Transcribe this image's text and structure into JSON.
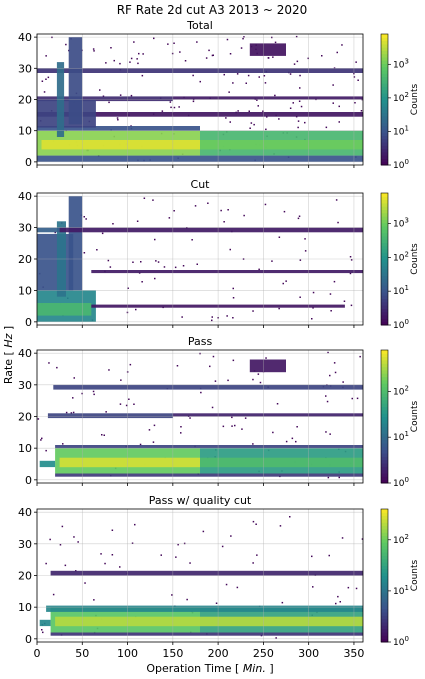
{
  "figure": {
    "title": "RF Rate 2d cut A3 2013 ~ 2020",
    "ylabel_prefix": "Rate [ ",
    "ylabel_unit": "Hz",
    "ylabel_suffix": " ]",
    "xlabel_prefix": "Operation Time [ ",
    "xlabel_unit": "Min.",
    "xlabel_suffix": " ]",
    "colormap": [
      "#440154",
      "#3b528b",
      "#21918c",
      "#5ec962",
      "#fde725"
    ]
  },
  "chart_data": [
    {
      "type": "heatmap",
      "title": "Total",
      "xlim": [
        0,
        360
      ],
      "ylim": [
        -1,
        41
      ],
      "xticks": [
        0,
        50,
        100,
        150,
        200,
        250,
        300,
        350
      ],
      "yticks": [
        0,
        10,
        20,
        30,
        40
      ],
      "colorbar": {
        "label": "Counts",
        "scale": "log",
        "range": [
          1,
          8000
        ],
        "ticks": [
          {
            "base": "10",
            "exp": "0",
            "v": 1
          },
          {
            "base": "10",
            "exp": "1",
            "v": 10
          },
          {
            "base": "10",
            "exp": "2",
            "v": 100
          },
          {
            "base": "10",
            "exp": "3",
            "v": 1000
          }
        ]
      },
      "bands": [
        {
          "y": [
            2,
            10
          ],
          "x": [
            0,
            180
          ],
          "level": 3.2
        },
        {
          "y": [
            2,
            10
          ],
          "x": [
            180,
            360
          ],
          "level": 2.6
        },
        {
          "y": [
            4,
            7
          ],
          "x": [
            5,
            180
          ],
          "level": 3.7
        },
        {
          "y": [
            4,
            7
          ],
          "x": [
            180,
            360
          ],
          "level": 3.0
        },
        {
          "y": [
            0,
            2
          ],
          "x": [
            0,
            360
          ],
          "level": 1.0
        },
        {
          "y": [
            10,
            11.5
          ],
          "x": [
            0,
            180
          ],
          "level": 1.0
        },
        {
          "y": [
            28.5,
            30
          ],
          "x": [
            0,
            360
          ],
          "level": 0.6
        },
        {
          "y": [
            19.5,
            21
          ],
          "x": [
            0,
            150
          ],
          "level": 0.5
        },
        {
          "y": [
            20,
            21
          ],
          "x": [
            150,
            360
          ],
          "level": 0.3
        },
        {
          "y": [
            14.5,
            16
          ],
          "x": [
            0,
            360
          ],
          "level": 0.25
        },
        {
          "y": [
            11,
            20
          ],
          "x": [
            0,
            65
          ],
          "level": 0.8
        },
        {
          "y": [
            12,
            40
          ],
          "x": [
            35,
            50
          ],
          "level": 0.9
        },
        {
          "y": [
            8,
            32
          ],
          "x": [
            22,
            30
          ],
          "level": 1.4
        },
        {
          "y": [
            34,
            38
          ],
          "x": [
            235,
            275
          ],
          "level": 0.2
        }
      ],
      "noise_density": 0.1
    },
    {
      "type": "heatmap",
      "title": "Cut",
      "xlim": [
        0,
        360
      ],
      "ylim": [
        -1,
        41
      ],
      "xticks": [
        0,
        50,
        100,
        150,
        200,
        250,
        300,
        350
      ],
      "yticks": [
        0,
        10,
        20,
        30,
        40
      ],
      "colorbar": {
        "label": "Counts",
        "scale": "log",
        "range": [
          1,
          8000
        ],
        "ticks": [
          {
            "base": "10",
            "exp": "0",
            "v": 1
          },
          {
            "base": "10",
            "exp": "1",
            "v": 10
          },
          {
            "base": "10",
            "exp": "2",
            "v": 100
          },
          {
            "base": "10",
            "exp": "3",
            "v": 1000
          }
        ]
      },
      "bands": [
        {
          "y": [
            0,
            10
          ],
          "x": [
            0,
            65
          ],
          "level": 1.8
        },
        {
          "y": [
            2,
            6
          ],
          "x": [
            0,
            60
          ],
          "level": 2.6
        },
        {
          "y": [
            10,
            28
          ],
          "x": [
            0,
            40
          ],
          "level": 1.0
        },
        {
          "y": [
            8,
            32
          ],
          "x": [
            22,
            32
          ],
          "level": 1.5
        },
        {
          "y": [
            10,
            40
          ],
          "x": [
            35,
            50
          ],
          "level": 1.0
        },
        {
          "y": [
            28.5,
            30
          ],
          "x": [
            0,
            25
          ],
          "level": 1.2
        },
        {
          "y": [
            28.5,
            30
          ],
          "x": [
            25,
            360
          ],
          "level": 0.3
        },
        {
          "y": [
            15.5,
            16.5
          ],
          "x": [
            60,
            360
          ],
          "level": 0.3
        },
        {
          "y": [
            4.5,
            5.5
          ],
          "x": [
            60,
            340
          ],
          "level": 0.25
        }
      ],
      "noise_density": 0.05
    },
    {
      "type": "heatmap",
      "title": "Pass",
      "xlim": [
        0,
        360
      ],
      "ylim": [
        -1,
        41
      ],
      "xticks": [
        0,
        50,
        100,
        150,
        200,
        250,
        300,
        350
      ],
      "yticks": [
        0,
        10,
        20,
        30,
        40
      ],
      "colorbar": {
        "label": "Counts",
        "scale": "log",
        "range": [
          1,
          800
        ],
        "ticks": [
          {
            "base": "10",
            "exp": "0",
            "v": 1
          },
          {
            "base": "10",
            "exp": "1",
            "v": 10
          },
          {
            "base": "10",
            "exp": "2",
            "v": 100
          }
        ]
      },
      "bands": [
        {
          "y": [
            2,
            10
          ],
          "x": [
            20,
            180
          ],
          "level": 2.2
        },
        {
          "y": [
            2,
            10
          ],
          "x": [
            180,
            360
          ],
          "level": 1.6
        },
        {
          "y": [
            4,
            7
          ],
          "x": [
            25,
            180
          ],
          "level": 2.7
        },
        {
          "y": [
            4,
            7
          ],
          "x": [
            180,
            360
          ],
          "level": 2.0
        },
        {
          "y": [
            4,
            6
          ],
          "x": [
            3,
            20
          ],
          "level": 1.4
        },
        {
          "y": [
            28.5,
            30
          ],
          "x": [
            18,
            360
          ],
          "level": 0.6
        },
        {
          "y": [
            19.5,
            21
          ],
          "x": [
            12,
            150
          ],
          "level": 0.6
        },
        {
          "y": [
            20,
            21
          ],
          "x": [
            150,
            360
          ],
          "level": 0.3
        },
        {
          "y": [
            10,
            11
          ],
          "x": [
            20,
            360
          ],
          "level": 0.6
        },
        {
          "y": [
            1,
            2
          ],
          "x": [
            20,
            360
          ],
          "level": 0.5
        },
        {
          "y": [
            34,
            38
          ],
          "x": [
            235,
            275
          ],
          "level": 0.2
        }
      ],
      "noise_density": 0.06
    },
    {
      "type": "heatmap",
      "title": "Pass w/ quality cut",
      "xlim": [
        0,
        360
      ],
      "ylim": [
        -1,
        41
      ],
      "xticks": [
        0,
        50,
        100,
        150,
        200,
        250,
        300,
        350
      ],
      "yticks": [
        0,
        10,
        20,
        30,
        40
      ],
      "colorbar": {
        "label": "Counts",
        "scale": "log",
        "range": [
          1,
          400
        ],
        "ticks": [
          {
            "base": "10",
            "exp": "0",
            "v": 1
          },
          {
            "base": "10",
            "exp": "1",
            "v": 10
          },
          {
            "base": "10",
            "exp": "2",
            "v": 100
          }
        ]
      },
      "bands": [
        {
          "y": [
            2,
            10
          ],
          "x": [
            15,
            180
          ],
          "level": 1.9
        },
        {
          "y": [
            2,
            10
          ],
          "x": [
            180,
            360
          ],
          "level": 1.5
        },
        {
          "y": [
            4,
            7
          ],
          "x": [
            20,
            360
          ],
          "level": 2.3
        },
        {
          "y": [
            4,
            6
          ],
          "x": [
            3,
            15
          ],
          "level": 1.2
        },
        {
          "y": [
            8.5,
            10.5
          ],
          "x": [
            10,
            360
          ],
          "level": 1.2
        },
        {
          "y": [
            20,
            21.5
          ],
          "x": [
            15,
            360
          ],
          "level": 0.3
        },
        {
          "y": [
            1,
            2
          ],
          "x": [
            15,
            360
          ],
          "level": 0.4
        }
      ],
      "noise_density": 0.04
    }
  ]
}
